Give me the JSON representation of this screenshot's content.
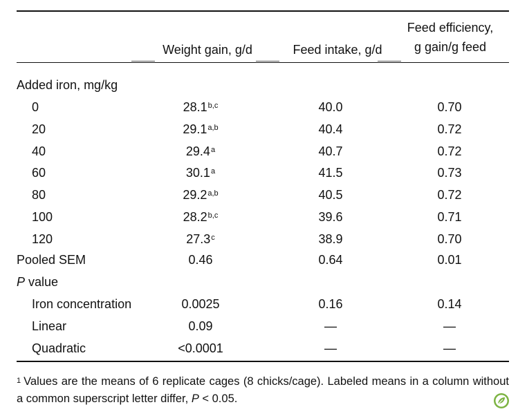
{
  "header": {
    "col2": "Weight gain, g/d",
    "col3": "Feed intake, g/d",
    "col4_line1": "Feed efficiency,",
    "col4_line2": "g gain/g feed"
  },
  "section_added_iron": "Added iron, mg/kg",
  "rows": [
    {
      "label": "0",
      "wg": "28.1",
      "wg_sup": "b,c",
      "fi": "40.0",
      "fe": "0.70"
    },
    {
      "label": "20",
      "wg": "29.1",
      "wg_sup": "a,b",
      "fi": "40.4",
      "fe": "0.72"
    },
    {
      "label": "40",
      "wg": "29.4",
      "wg_sup": "a",
      "fi": "40.7",
      "fe": "0.72"
    },
    {
      "label": "60",
      "wg": "30.1",
      "wg_sup": "a",
      "fi": "41.5",
      "fe": "0.73"
    },
    {
      "label": "80",
      "wg": "29.2",
      "wg_sup": "a,b",
      "fi": "40.5",
      "fe": "0.72"
    },
    {
      "label": "100",
      "wg": "28.2",
      "wg_sup": "b,c",
      "fi": "39.6",
      "fe": "0.71"
    },
    {
      "label": "120",
      "wg": "27.3",
      "wg_sup": "c",
      "fi": "38.9",
      "fe": "0.70"
    }
  ],
  "pooled_sem": {
    "label": "Pooled SEM",
    "wg": "0.46",
    "fi": "0.64",
    "fe": "0.01"
  },
  "p_value": {
    "label_italic": "P",
    "label_rest": " value"
  },
  "p_rows": [
    {
      "label": "Iron concentration",
      "wg": "0.0025",
      "fi": "0.16",
      "fe": "0.14"
    },
    {
      "label": "Linear",
      "wg": "0.09",
      "fi": "—",
      "fe": "—"
    },
    {
      "label": "Quadratic",
      "wg": "<0.0001",
      "fi": "—",
      "fe": "—"
    }
  ],
  "footnote": {
    "marker": "1",
    "text_before": "Values are the means of 6 replicate cages (8 chicks/cage). Labeled means in a column without a common superscript letter differ, ",
    "italic_p": "P",
    "text_after": " < 0.05."
  },
  "logo_icon": "leaf-logo-icon"
}
